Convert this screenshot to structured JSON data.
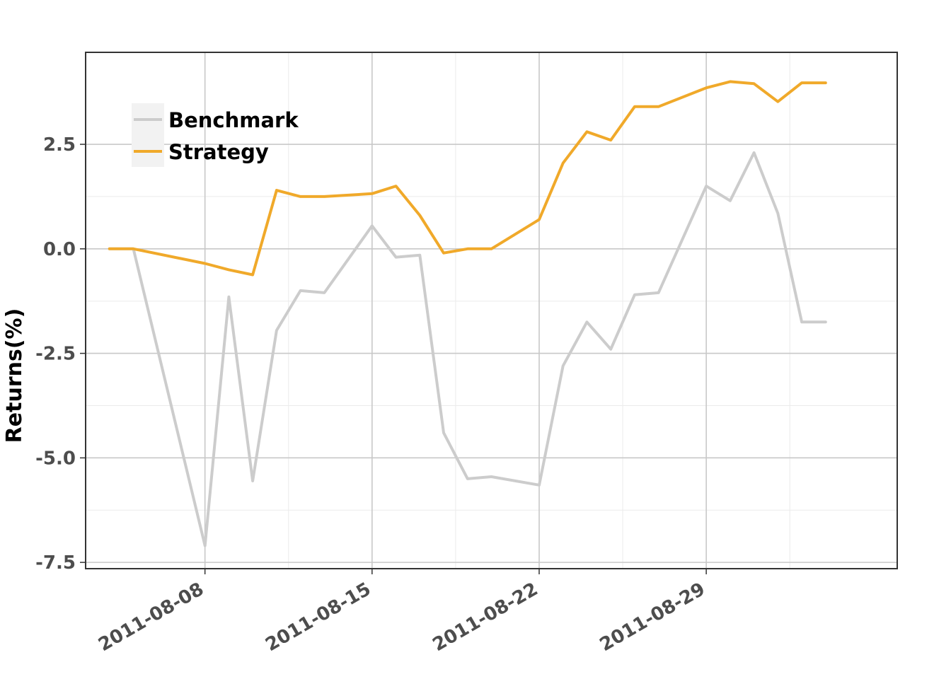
{
  "chart_data": {
    "type": "line",
    "ylabel": "Returns(%)",
    "xlabel": "",
    "title": "",
    "ylim": [
      -7.5,
      4.5
    ],
    "yticks": [
      -7.5,
      -5.0,
      -2.5,
      0.0,
      2.5
    ],
    "ytick_labels": [
      "-7.5",
      "-5.0",
      "-2.5",
      "0.0",
      "2.5"
    ],
    "xlim": [
      "2011-08-03",
      "2011-09-06"
    ],
    "xticks": [
      "2011-08-08",
      "2011-08-15",
      "2011-08-22",
      "2011-08-29"
    ],
    "xtick_labels": [
      "2011-08-08",
      "2011-08-15",
      "2011-08-22",
      "2011-08-29"
    ],
    "grid": true,
    "legend_position": "top-left",
    "x": [
      "2011-08-04",
      "2011-08-05",
      "2011-08-08",
      "2011-08-09",
      "2011-08-10",
      "2011-08-11",
      "2011-08-12",
      "2011-08-13",
      "2011-08-15",
      "2011-08-16",
      "2011-08-17",
      "2011-08-18",
      "2011-08-19",
      "2011-08-20",
      "2011-08-22",
      "2011-08-23",
      "2011-08-24",
      "2011-08-25",
      "2011-08-26",
      "2011-08-27",
      "2011-08-29",
      "2011-08-30",
      "2011-08-31",
      "2011-09-01",
      "2011-09-02",
      "2011-09-03"
    ],
    "series": [
      {
        "name": "Benchmark",
        "color": "#cccccc",
        "values": [
          0.0,
          0.0,
          -7.1,
          -1.15,
          -5.55,
          -1.95,
          -1.0,
          -1.05,
          0.55,
          -0.2,
          -0.15,
          -4.4,
          -5.5,
          -5.45,
          -5.65,
          -2.8,
          -1.75,
          -2.4,
          -1.1,
          -1.05,
          1.5,
          1.15,
          2.3,
          0.85,
          -1.75,
          -1.75
        ]
      },
      {
        "name": "Strategy",
        "color": "#f0a92a",
        "values": [
          0.0,
          0.0,
          -0.35,
          -0.5,
          -0.62,
          1.4,
          1.25,
          1.25,
          1.32,
          1.5,
          0.8,
          -0.1,
          0.0,
          0.0,
          0.7,
          2.05,
          2.8,
          2.6,
          3.4,
          3.4,
          3.85,
          4.0,
          3.95,
          3.52,
          3.97,
          3.97
        ]
      }
    ]
  }
}
